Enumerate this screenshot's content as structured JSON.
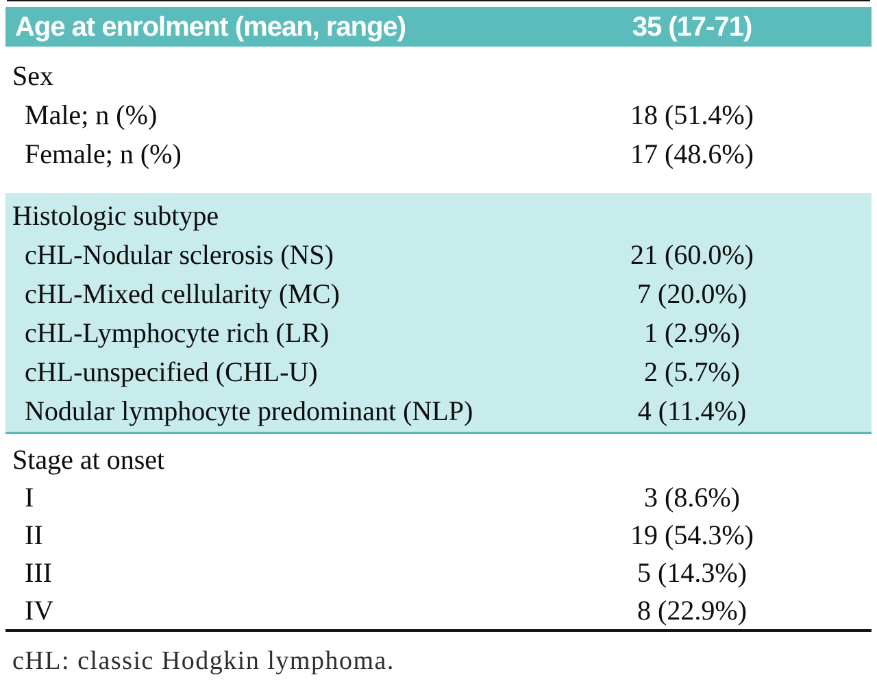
{
  "table": {
    "header": {
      "label": "Age at enrolment (mean, range)",
      "value": "35 (17-71)"
    },
    "sections": [
      {
        "title": "Sex",
        "highlight": false,
        "rows": [
          {
            "label": "Male; n (%)",
            "value": "18 (51.4%)"
          },
          {
            "label": "Female; n (%)",
            "value": "17 (48.6%)"
          }
        ]
      },
      {
        "title": "Histologic subtype",
        "highlight": true,
        "rows": [
          {
            "label": "cHL-Nodular sclerosis (NS)",
            "value": "21 (60.0%)"
          },
          {
            "label": "cHL-Mixed cellularity (MC)",
            "value": "7 (20.0%)"
          },
          {
            "label": "cHL-Lymphocyte rich (LR)",
            "value": "1 (2.9%)"
          },
          {
            "label": "cHL-unspecified (CHL-U)",
            "value": "2 (5.7%)"
          },
          {
            "label": "Nodular lymphocyte predominant (NLP)",
            "value": "4 (11.4%)"
          }
        ]
      },
      {
        "title": "Stage at onset",
        "highlight": false,
        "rows": [
          {
            "label": "I",
            "value": "3 (8.6%)"
          },
          {
            "label": "II",
            "value": "19 (54.3%)"
          },
          {
            "label": "III",
            "value": "5 (14.3%)"
          },
          {
            "label": "IV",
            "value": "8 (22.9%)"
          }
        ]
      }
    ],
    "footnote": "cHL: classic Hodgkin lymphoma."
  },
  "colors": {
    "header_bg": "#5cbcbc",
    "highlight_bg": "#c8ebeb",
    "divider_teal": "#55b7b7",
    "rule_black": "#161616"
  }
}
